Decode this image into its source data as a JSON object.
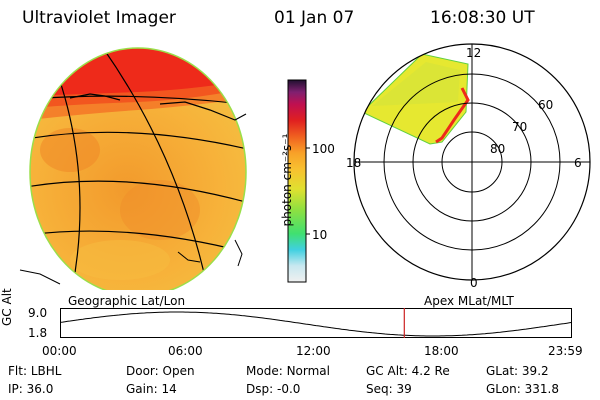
{
  "header": {
    "instrument": "Ultraviolet Imager",
    "date": "01 Jan 07",
    "time": "16:08:30 UT"
  },
  "colorbar": {
    "unit_label": "photon cm⁻²s⁻¹",
    "ticks": [
      "100",
      "10"
    ]
  },
  "polar_plot": {
    "labels": {
      "top": "12",
      "left": "18",
      "right": "6",
      "bottom": "0"
    },
    "lat_rings": [
      "60",
      "70",
      "80"
    ]
  },
  "altitude_panel": {
    "ylabel": "GC Alt",
    "yticks": [
      "9.0",
      "1.8"
    ],
    "left_title": "Geographic Lat/Lon",
    "right_title": "Apex MLat/MLT",
    "xticks": [
      "00:00",
      "06:00",
      "12:00",
      "18:00",
      "23:59"
    ],
    "current_time_hours": 16.14
  },
  "info": {
    "row1": [
      {
        "label": "Flt:",
        "value": "LBHL"
      },
      {
        "label": "Door:",
        "value": "Open"
      },
      {
        "label": "Mode:",
        "value": "Normal"
      },
      {
        "label": "GC Alt:",
        "value": "4.2 Re"
      },
      {
        "label": "GLat:",
        "value": "39.2"
      }
    ],
    "row2": [
      {
        "label": "IP:",
        "value": "36.0"
      },
      {
        "label": "Gain:",
        "value": "14"
      },
      {
        "label": "Dsp:",
        "value": "-0.0"
      },
      {
        "label": "Seq:",
        "value": "39"
      },
      {
        "label": "GLon:",
        "value": "331.8"
      }
    ]
  },
  "colors": {
    "disk_base": "#f6a030",
    "disk_bright": "#ee2a1a",
    "polar_fill": "#e8e830",
    "marker": "#cc2222"
  }
}
